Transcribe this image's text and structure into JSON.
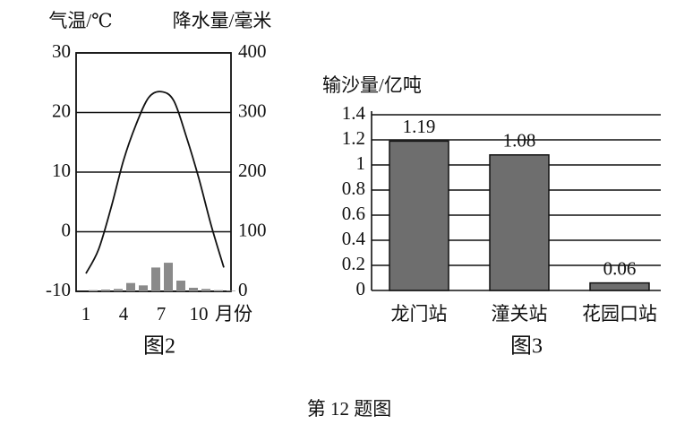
{
  "chart_data": [
    {
      "type": "combo",
      "ylabel": "气温/℃",
      "y2label": "降水量/毫米",
      "xlabel": "月份",
      "categories": [
        "1",
        null,
        null,
        "4",
        null,
        null,
        "7",
        null,
        null,
        "10",
        null,
        null
      ],
      "series": [
        {
          "type": "line",
          "color": "#111111",
          "values": [
            -7,
            -3,
            4,
            12,
            18,
            22.5,
            23.5,
            22,
            16,
            9,
            1,
            -6
          ]
        },
        {
          "type": "bar",
          "axis": "y2",
          "color": "#8a8a8a",
          "values": [
            2,
            3,
            4,
            14,
            10,
            40,
            48,
            18,
            6,
            4,
            2,
            1
          ]
        }
      ],
      "ylim": [
        -10,
        30
      ],
      "yticks": [
        -10,
        0,
        10,
        20,
        30
      ],
      "y2lim": [
        0,
        400
      ],
      "y2ticks": [
        0,
        100,
        200,
        300,
        400
      ],
      "grid": true,
      "caption": "图2"
    },
    {
      "type": "bar",
      "ylabel": "输沙量/亿吨",
      "categories": [
        "龙门站",
        "潼关站",
        "花园口站"
      ],
      "values": [
        1.19,
        1.08,
        0.06
      ],
      "color": "#6e6e6e",
      "ylim": [
        0,
        1.4
      ],
      "yticks": [
        0,
        0.2,
        0.4,
        0.6,
        0.8,
        1,
        1.2,
        1.4
      ],
      "grid": true,
      "caption": "图3"
    }
  ],
  "figure_caption": "第 12 题图"
}
